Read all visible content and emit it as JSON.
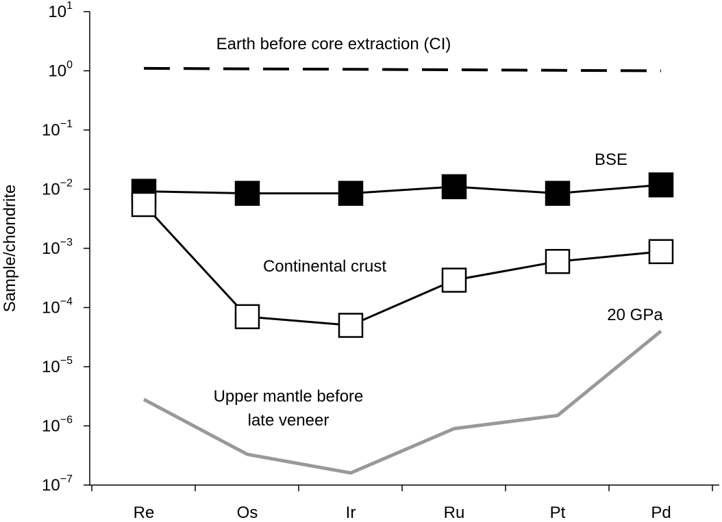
{
  "chart_data": {
    "type": "line",
    "categories": [
      "Re",
      "Os",
      "Ir",
      "Ru",
      "Pt",
      "Pd"
    ],
    "xlabel": "",
    "ylabel": "Sample/chondrite",
    "yscale": "log",
    "ylim": [
      1e-07,
      10
    ],
    "ytick_labels": [
      {
        "base": "10",
        "exp": "1"
      },
      {
        "base": "10",
        "exp": "0"
      },
      {
        "base": "10",
        "exp": "−1"
      },
      {
        "base": "10",
        "exp": "−2"
      },
      {
        "base": "10",
        "exp": "−3"
      },
      {
        "base": "10",
        "exp": "−4"
      },
      {
        "base": "10",
        "exp": "−5"
      },
      {
        "base": "10",
        "exp": "−6"
      },
      {
        "base": "10",
        "exp": "−7"
      }
    ],
    "grid": false,
    "series": [
      {
        "name": "Earth before core extraction (CI)",
        "style": "dashed",
        "color": "#000000",
        "values": [
          1.1,
          1.08,
          1.06,
          1.04,
          1.02,
          1.0
        ]
      },
      {
        "name": "BSE",
        "style": "filled-square",
        "color": "#000000",
        "values": [
          0.0092,
          0.0085,
          0.0085,
          0.011,
          0.0085,
          0.0118
        ]
      },
      {
        "name": "Continental crust",
        "style": "open-square",
        "color": "#000000",
        "values": [
          0.0055,
          7e-05,
          5e-05,
          0.00029,
          0.0006,
          0.00088
        ]
      },
      {
        "name": "Upper mantle before late veneer",
        "style": "thick-line",
        "color": "#999999",
        "values": [
          2.8e-06,
          3.3e-07,
          1.6e-07,
          9e-07,
          1.5e-06,
          4e-05
        ]
      }
    ],
    "annotations": [
      {
        "text": "Earth before core extraction (CI)",
        "series": 0
      },
      {
        "text": "BSE",
        "series": 1
      },
      {
        "text": "Continental crust",
        "series": 2
      },
      {
        "text": "20 GPa",
        "series": 3
      },
      {
        "text": "Upper mantle before",
        "series": 3
      },
      {
        "text": "late veneer",
        "series": 3
      }
    ]
  }
}
